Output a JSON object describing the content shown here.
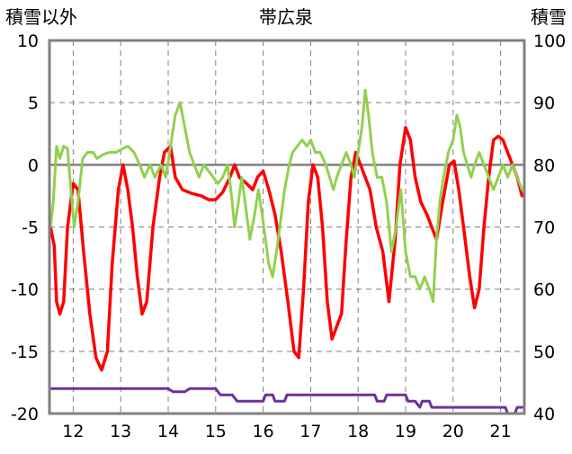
{
  "chart_data": {
    "type": "line",
    "title": "帯広泉",
    "left_axis_label": "積雪以外",
    "right_axis_label": "積雪",
    "x_ticks": [
      "12",
      "13",
      "14",
      "15",
      "16",
      "17",
      "18",
      "19",
      "20",
      "21"
    ],
    "xlim": [
      11.5,
      21.5
    ],
    "ylim_left": [
      -20,
      10
    ],
    "ylim_right": [
      40,
      100
    ],
    "y_ticks_left": [
      "10",
      "5",
      "0",
      "-5",
      "-10",
      "-15",
      "-20"
    ],
    "y_ticks_right": [
      "100",
      "90",
      "80",
      "70",
      "60",
      "50",
      "40"
    ],
    "grid": true,
    "colors": {
      "red_series": "#ff0000",
      "green_series": "#92d050",
      "purple_series": "#7030a0",
      "zero_line": "#808080",
      "grid": "#808080",
      "frame": "#808080"
    },
    "series": [
      {
        "axis": "left",
        "color": "#ff0000",
        "points": [
          [
            11.52,
            -5
          ],
          [
            11.6,
            -6.5
          ],
          [
            11.65,
            -11
          ],
          [
            11.72,
            -12
          ],
          [
            11.8,
            -11
          ],
          [
            11.88,
            -5
          ],
          [
            12.0,
            -1.5
          ],
          [
            12.1,
            -2
          ],
          [
            12.22,
            -7
          ],
          [
            12.35,
            -12
          ],
          [
            12.48,
            -15.5
          ],
          [
            12.6,
            -16.5
          ],
          [
            12.72,
            -15
          ],
          [
            12.82,
            -8
          ],
          [
            12.95,
            -2
          ],
          [
            13.05,
            0
          ],
          [
            13.15,
            -2
          ],
          [
            13.25,
            -5
          ],
          [
            13.35,
            -9
          ],
          [
            13.45,
            -12
          ],
          [
            13.55,
            -11
          ],
          [
            13.68,
            -5
          ],
          [
            13.82,
            -1
          ],
          [
            13.92,
            1
          ],
          [
            14.05,
            1.5
          ],
          [
            14.15,
            -1
          ],
          [
            14.3,
            -2
          ],
          [
            14.5,
            -2.3
          ],
          [
            14.7,
            -2.5
          ],
          [
            14.85,
            -2.8
          ],
          [
            15.0,
            -2.8
          ],
          [
            15.15,
            -2.2
          ],
          [
            15.3,
            -1
          ],
          [
            15.4,
            0
          ],
          [
            15.5,
            -1
          ],
          [
            15.65,
            -1.5
          ],
          [
            15.78,
            -2
          ],
          [
            15.88,
            -1
          ],
          [
            16.0,
            -0.5
          ],
          [
            16.12,
            -2
          ],
          [
            16.25,
            -4
          ],
          [
            16.38,
            -7
          ],
          [
            16.52,
            -11
          ],
          [
            16.65,
            -15
          ],
          [
            16.75,
            -15.5
          ],
          [
            16.85,
            -10
          ],
          [
            16.95,
            -3
          ],
          [
            17.05,
            0
          ],
          [
            17.15,
            -1
          ],
          [
            17.25,
            -5
          ],
          [
            17.35,
            -11
          ],
          [
            17.45,
            -14
          ],
          [
            17.55,
            -13
          ],
          [
            17.65,
            -12
          ],
          [
            17.75,
            -6
          ],
          [
            17.85,
            -1
          ],
          [
            17.95,
            1
          ],
          [
            18.05,
            0
          ],
          [
            18.15,
            -1
          ],
          [
            18.25,
            -2
          ],
          [
            18.38,
            -5
          ],
          [
            18.52,
            -7
          ],
          [
            18.65,
            -11
          ],
          [
            18.78,
            -6
          ],
          [
            18.88,
            0
          ],
          [
            19.0,
            3
          ],
          [
            19.1,
            2
          ],
          [
            19.2,
            -1
          ],
          [
            19.32,
            -3
          ],
          [
            19.45,
            -4
          ],
          [
            19.55,
            -5
          ],
          [
            19.65,
            -6
          ],
          [
            19.78,
            -3
          ],
          [
            19.92,
            0
          ],
          [
            20.02,
            0.3
          ],
          [
            20.12,
            -2
          ],
          [
            20.22,
            -5
          ],
          [
            20.35,
            -9
          ],
          [
            20.45,
            -11.5
          ],
          [
            20.55,
            -10
          ],
          [
            20.65,
            -5
          ],
          [
            20.75,
            -1
          ],
          [
            20.85,
            2
          ],
          [
            20.95,
            2.3
          ],
          [
            21.05,
            2
          ],
          [
            21.15,
            1
          ],
          [
            21.25,
            0
          ],
          [
            21.35,
            -1
          ],
          [
            21.45,
            -2.5
          ]
        ]
      },
      {
        "axis": "left",
        "color": "#92d050",
        "points": [
          [
            11.52,
            -5
          ],
          [
            11.58,
            -3
          ],
          [
            11.65,
            1.5
          ],
          [
            11.72,
            0.5
          ],
          [
            11.8,
            1.5
          ],
          [
            11.88,
            1.3
          ],
          [
            11.95,
            -2
          ],
          [
            12.02,
            -5
          ],
          [
            12.1,
            -3
          ],
          [
            12.2,
            0.5
          ],
          [
            12.3,
            1
          ],
          [
            12.42,
            1
          ],
          [
            12.5,
            0.5
          ],
          [
            12.62,
            0.8
          ],
          [
            12.75,
            1
          ],
          [
            12.9,
            1
          ],
          [
            13.05,
            1.3
          ],
          [
            13.15,
            1.5
          ],
          [
            13.28,
            1
          ],
          [
            13.4,
            0
          ],
          [
            13.5,
            -1
          ],
          [
            13.62,
            0
          ],
          [
            13.72,
            -1
          ],
          [
            13.85,
            0
          ],
          [
            13.95,
            -1
          ],
          [
            14.05,
            1.5
          ],
          [
            14.15,
            4
          ],
          [
            14.25,
            5
          ],
          [
            14.35,
            3
          ],
          [
            14.45,
            1
          ],
          [
            14.55,
            0
          ],
          [
            14.65,
            -1
          ],
          [
            14.75,
            0
          ],
          [
            14.85,
            -0.5
          ],
          [
            14.95,
            -1
          ],
          [
            15.05,
            -1.5
          ],
          [
            15.15,
            -1
          ],
          [
            15.25,
            0
          ],
          [
            15.32,
            -2
          ],
          [
            15.4,
            -5
          ],
          [
            15.48,
            -3
          ],
          [
            15.55,
            -1
          ],
          [
            15.62,
            -3
          ],
          [
            15.72,
            -6
          ],
          [
            15.82,
            -4
          ],
          [
            15.9,
            -2
          ],
          [
            15.98,
            -4
          ],
          [
            16.05,
            -6
          ],
          [
            16.12,
            -8
          ],
          [
            16.2,
            -9
          ],
          [
            16.28,
            -7
          ],
          [
            16.35,
            -5
          ],
          [
            16.45,
            -2
          ],
          [
            16.55,
            0
          ],
          [
            16.62,
            1
          ],
          [
            16.72,
            1.5
          ],
          [
            16.82,
            2
          ],
          [
            16.92,
            1.5
          ],
          [
            17.0,
            2
          ],
          [
            17.1,
            1
          ],
          [
            17.2,
            1
          ],
          [
            17.32,
            0
          ],
          [
            17.4,
            -1
          ],
          [
            17.48,
            -2
          ],
          [
            17.55,
            -1
          ],
          [
            17.65,
            0
          ],
          [
            17.75,
            1
          ],
          [
            17.85,
            0
          ],
          [
            17.92,
            -1
          ],
          [
            18.0,
            1
          ],
          [
            18.08,
            3
          ],
          [
            18.15,
            6
          ],
          [
            18.22,
            4
          ],
          [
            18.3,
            1
          ],
          [
            18.4,
            -1
          ],
          [
            18.5,
            -1
          ],
          [
            18.6,
            -3
          ],
          [
            18.7,
            -7
          ],
          [
            18.8,
            -5
          ],
          [
            18.9,
            -2
          ],
          [
            19.0,
            -7
          ],
          [
            19.1,
            -9
          ],
          [
            19.2,
            -9
          ],
          [
            19.3,
            -10
          ],
          [
            19.4,
            -9
          ],
          [
            19.5,
            -10
          ],
          [
            19.58,
            -11
          ],
          [
            19.65,
            -6
          ],
          [
            19.72,
            -3
          ],
          [
            19.8,
            -1
          ],
          [
            19.9,
            1
          ],
          [
            20.0,
            2
          ],
          [
            20.08,
            4
          ],
          [
            20.15,
            3
          ],
          [
            20.22,
            1
          ],
          [
            20.3,
            0
          ],
          [
            20.38,
            -1
          ],
          [
            20.45,
            0
          ],
          [
            20.55,
            1
          ],
          [
            20.65,
            0
          ],
          [
            20.75,
            -1
          ],
          [
            20.85,
            -2
          ],
          [
            20.95,
            -1
          ],
          [
            21.05,
            0
          ],
          [
            21.15,
            -1
          ],
          [
            21.25,
            0
          ],
          [
            21.35,
            -1
          ],
          [
            21.45,
            -2
          ]
        ]
      },
      {
        "axis": "right",
        "color": "#7030a0",
        "points": [
          [
            11.52,
            44
          ],
          [
            12.0,
            44
          ],
          [
            12.5,
            44
          ],
          [
            13.0,
            44
          ],
          [
            13.5,
            44
          ],
          [
            14.0,
            44
          ],
          [
            14.1,
            43.5
          ],
          [
            14.35,
            43.5
          ],
          [
            14.45,
            44
          ],
          [
            15.0,
            44
          ],
          [
            15.1,
            43
          ],
          [
            15.35,
            43
          ],
          [
            15.45,
            42
          ],
          [
            16.0,
            42
          ],
          [
            16.05,
            43
          ],
          [
            16.2,
            43
          ],
          [
            16.25,
            42
          ],
          [
            16.45,
            42
          ],
          [
            16.5,
            43
          ],
          [
            17.0,
            43
          ],
          [
            17.5,
            43
          ],
          [
            18.0,
            43
          ],
          [
            18.35,
            43
          ],
          [
            18.4,
            42
          ],
          [
            18.55,
            42
          ],
          [
            18.6,
            43
          ],
          [
            19.0,
            43
          ],
          [
            19.05,
            42
          ],
          [
            19.2,
            42
          ],
          [
            19.3,
            41
          ],
          [
            19.35,
            42
          ],
          [
            19.5,
            42
          ],
          [
            19.55,
            41
          ],
          [
            20.0,
            41
          ],
          [
            20.5,
            41
          ],
          [
            21.0,
            41
          ],
          [
            21.1,
            41
          ],
          [
            21.15,
            40
          ],
          [
            21.3,
            40
          ],
          [
            21.35,
            41
          ],
          [
            21.45,
            41
          ]
        ]
      }
    ]
  }
}
